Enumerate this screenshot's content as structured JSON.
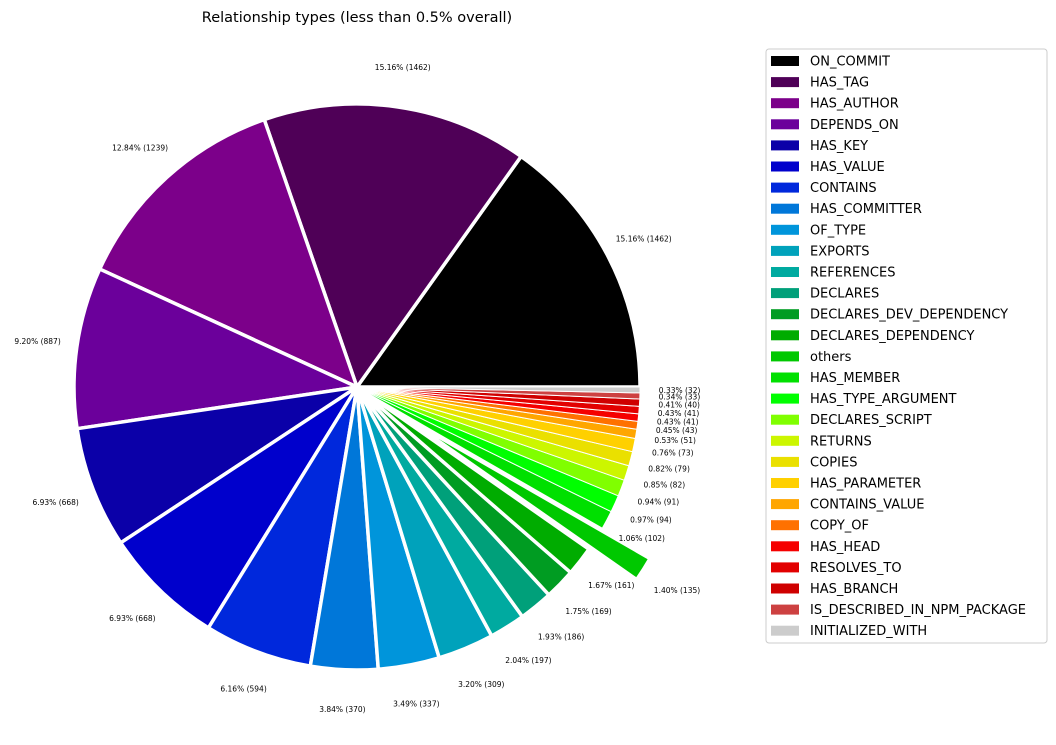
{
  "chart_data": {
    "type": "pie",
    "title": "Relationship types (less than 0.5% overall)",
    "legend_position": "right",
    "slices": [
      {
        "label": "ON_COMMIT",
        "count": 1462,
        "percent_label": "15.16% (1462)",
        "color": "#000000",
        "explode": 0.0
      },
      {
        "label": "HAS_TAG",
        "count": 1462,
        "percent_label": "15.16% (1462)",
        "color": "#4f0057",
        "explode": 0.0
      },
      {
        "label": "HAS_AUTHOR",
        "count": 1239,
        "percent_label": "12.84% (1239)",
        "color": "#7c008a",
        "explode": 0.0
      },
      {
        "label": "DEPENDS_ON",
        "count": 887,
        "percent_label": "9.20% (887)",
        "color": "#6b009b",
        "explode": 0.0
      },
      {
        "label": "HAS_KEY",
        "count": 668,
        "percent_label": "6.93% (668)",
        "color": "#0b00a8",
        "explode": 0.0
      },
      {
        "label": "HAS_VALUE",
        "count": 668,
        "percent_label": "6.93% (668)",
        "color": "#0000cc",
        "explode": 0.0
      },
      {
        "label": "CONTAINS",
        "count": 594,
        "percent_label": "6.16% (594)",
        "color": "#0028dc",
        "explode": 0.0
      },
      {
        "label": "HAS_COMMITTER",
        "count": 370,
        "percent_label": "3.84% (370)",
        "color": "#0077d9",
        "explode": 0.0
      },
      {
        "label": "OF_TYPE",
        "count": 337,
        "percent_label": "3.49% (337)",
        "color": "#0095db",
        "explode": 0.0
      },
      {
        "label": "EXPORTS",
        "count": 309,
        "percent_label": "3.20% (309)",
        "color": "#00a2bb",
        "explode": 0.0
      },
      {
        "label": "REFERENCES",
        "count": 197,
        "percent_label": "2.04% (197)",
        "color": "#00aaa0",
        "explode": 0.0
      },
      {
        "label": "DECLARES",
        "count": 186,
        "percent_label": "1.93% (186)",
        "color": "#00a07a",
        "explode": 0.0
      },
      {
        "label": "DECLARES_DEV_DEPENDENCY",
        "count": 169,
        "percent_label": "1.75% (169)",
        "color": "#009c22",
        "explode": 0.0
      },
      {
        "label": "DECLARES_DEPENDENCY",
        "count": 161,
        "percent_label": "1.67% (161)",
        "color": "#00ac00",
        "explode": 0.0
      },
      {
        "label": "others",
        "count": 135,
        "percent_label": "1.40% (135)",
        "color": "#00c800",
        "explode": 0.2
      },
      {
        "label": "HAS_MEMBER",
        "count": 102,
        "percent_label": "1.06% (102)",
        "color": "#00e000",
        "explode": 0.0
      },
      {
        "label": "HAS_TYPE_ARGUMENT",
        "count": 94,
        "percent_label": "0.97% (94)",
        "color": "#00ff00",
        "explode": 0.0
      },
      {
        "label": "DECLARES_SCRIPT",
        "count": 91,
        "percent_label": "0.94% (91)",
        "color": "#80ff00",
        "explode": 0.0
      },
      {
        "label": "RETURNS",
        "count": 82,
        "percent_label": "0.85% (82)",
        "color": "#ccf600",
        "explode": 0.0
      },
      {
        "label": "COPIES",
        "count": 79,
        "percent_label": "0.82% (79)",
        "color": "#eae000",
        "explode": 0.0
      },
      {
        "label": "HAS_PARAMETER",
        "count": 73,
        "percent_label": "0.76% (73)",
        "color": "#ffd000",
        "explode": 0.0
      },
      {
        "label": "CONTAINS_VALUE",
        "count": 51,
        "percent_label": "0.53% (51)",
        "color": "#ffa600",
        "explode": 0.0
      },
      {
        "label": "COPY_OF",
        "count": 43,
        "percent_label": "0.45% (43)",
        "color": "#ff7100",
        "explode": 0.0
      },
      {
        "label": "HAS_HEAD",
        "count": 41,
        "percent_label": "0.43% (41)",
        "color": "#f50000",
        "explode": 0.0
      },
      {
        "label": "RESOLVES_TO",
        "count": 41,
        "percent_label": "0.43% (41)",
        "color": "#e20000",
        "explode": 0.0
      },
      {
        "label": "HAS_BRANCH",
        "count": 40,
        "percent_label": "0.41% (40)",
        "color": "#cf0000",
        "explode": 0.0
      },
      {
        "label": "IS_DESCRIBED_IN_NPM_PACKAGE",
        "count": 33,
        "percent_label": "0.34% (33)",
        "color": "#cd4141",
        "explode": 0.0
      },
      {
        "label": "INITIALIZED_WITH",
        "count": 32,
        "percent_label": "0.33% (32)",
        "color": "#cccccc",
        "explode": 0.0
      }
    ]
  }
}
